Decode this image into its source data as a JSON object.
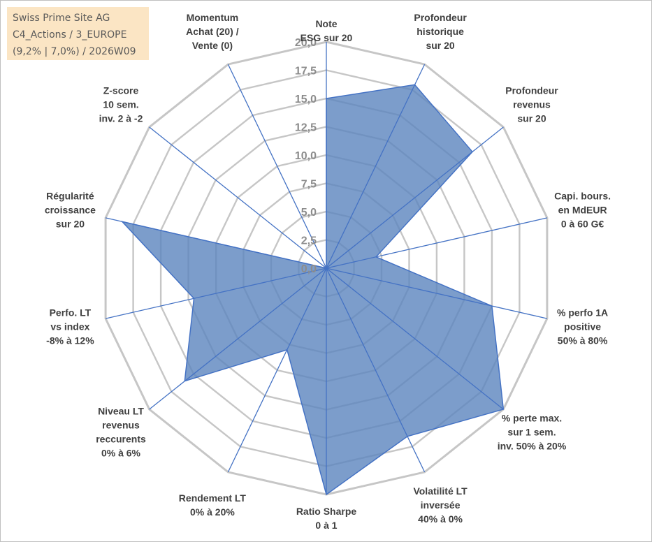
{
  "info_box": {
    "line1": "Swiss Prime Site AG",
    "line2": "C4_Actions / 3_EUROPE",
    "line3": "(9,2% | 7,0%) / 2026W09"
  },
  "colors": {
    "series_fill": "#5b85be",
    "series_stroke": "#4472c4",
    "grid": "#c6c6c6",
    "spoke": "#4472c4",
    "info_bg": "#fbe5c4"
  },
  "chart_data": {
    "type": "radar",
    "title": "",
    "rmin": 0,
    "rmax": 20,
    "ticks": [
      "0,0",
      "2,5",
      "5,0",
      "7,5",
      "10,0",
      "12,5",
      "15,0",
      "17,5",
      "20,0"
    ],
    "axes": [
      [
        "Note",
        "ESG sur 20"
      ],
      [
        "Profondeur",
        "historique",
        "sur 20"
      ],
      [
        "Profondeur",
        "revenus",
        "sur 20"
      ],
      [
        "Capi. bours.",
        "en MdEUR",
        "0 à 60 G€"
      ],
      [
        "% perfo 1A",
        "positive",
        "50% à 80%"
      ],
      [
        "% perte max.",
        "sur 1 sem.",
        "inv. 50% à 20%"
      ],
      [
        "Volatilité LT",
        "inversée",
        "40% à 0%"
      ],
      [
        "Ratio Sharpe",
        "0 à 1"
      ],
      [
        "Rendement LT",
        "0% à 20%"
      ],
      [
        "Niveau LT",
        "revenus",
        "reccurents",
        "0% à 6%"
      ],
      [
        "Perfo. LT",
        "vs index",
        "-8% à 12%"
      ],
      [
        "Régularité",
        "croissance",
        "sur 20"
      ],
      [
        "Z-score",
        "10 sem.",
        "inv. 2 à -2"
      ],
      [
        "Momentum",
        "Achat (20) /",
        "Vente (0)"
      ]
    ],
    "series": [
      {
        "values": [
          15.0,
          18.0,
          16.5,
          4.5,
          15.0,
          20.0,
          16.5,
          20.0,
          8.0,
          16.0,
          12.0,
          18.5,
          0.0,
          0.0
        ]
      }
    ]
  }
}
